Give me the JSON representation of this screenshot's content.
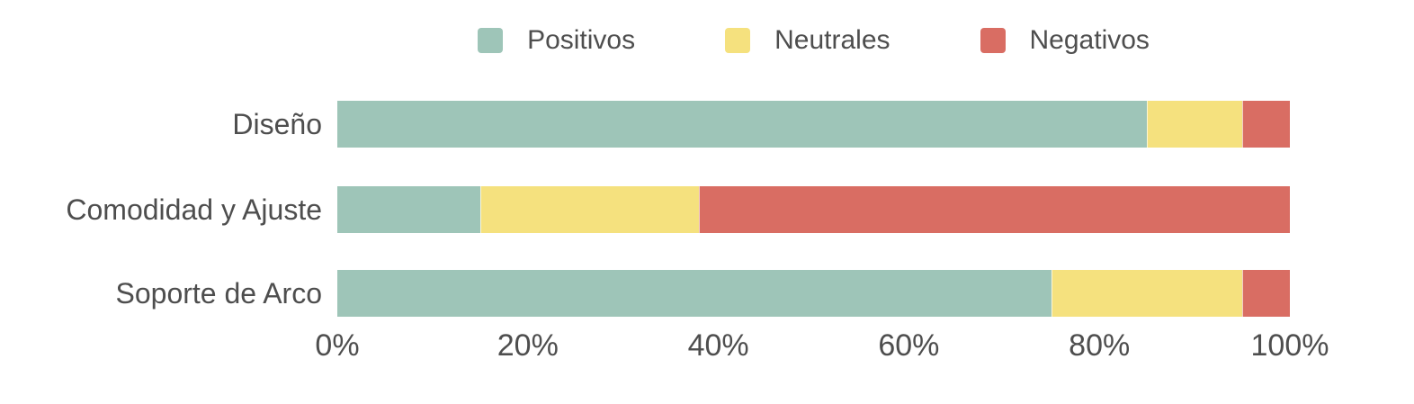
{
  "chart_data": {
    "type": "bar",
    "orientation": "horizontal",
    "stacked": true,
    "unit": "%",
    "title": "",
    "xlabel": "",
    "ylabel": "",
    "grid": false,
    "categories": [
      "Diseño",
      "Comodidad y Ajuste",
      "Soporte de Arco"
    ],
    "series": [
      {
        "name": "Positivos",
        "color": "#9EC5B8",
        "values": [
          85,
          15,
          75
        ]
      },
      {
        "name": "Neutrales",
        "color": "#F5E17E",
        "values": [
          10,
          23,
          20
        ]
      },
      {
        "name": "Negativos",
        "color": "#D96D63",
        "values": [
          5,
          62,
          5
        ]
      }
    ],
    "x_axis": {
      "range": [
        0,
        100
      ],
      "tick_values": [
        0,
        20,
        40,
        60,
        80,
        100
      ],
      "ticks": [
        "0%",
        "20%",
        "40%",
        "60%",
        "80%",
        "100%"
      ]
    },
    "legend": {
      "position": "top",
      "items": [
        "Positivos",
        "Neutrales",
        "Negativos"
      ]
    }
  },
  "colors": {
    "background": "#ffffff",
    "text": "#4e4e4e",
    "positive": "#9EC5B8",
    "neutral": "#F5E17E",
    "negative": "#D96D63"
  }
}
